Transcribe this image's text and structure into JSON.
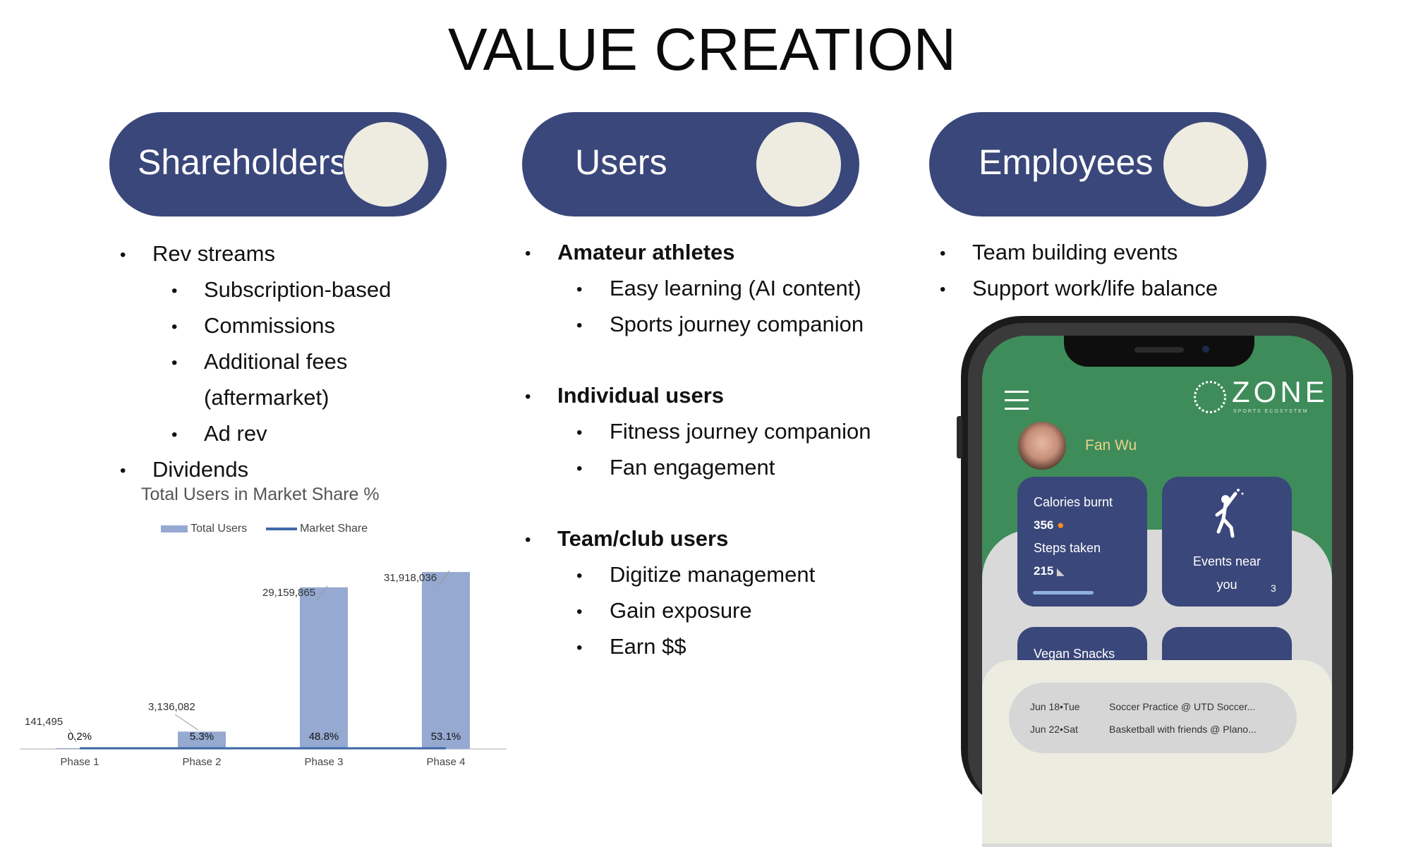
{
  "title": "VALUE CREATION",
  "columns": [
    {
      "heading": "Shareholders",
      "items": [
        {
          "level": 1,
          "text": "Rev streams"
        },
        {
          "level": 2,
          "text": "Subscription-based"
        },
        {
          "level": 2,
          "text": "Commissions"
        },
        {
          "level": 2,
          "text": "Additional fees"
        },
        {
          "level": 2,
          "text": "(aftermarket)",
          "nobullet": true
        },
        {
          "level": 2,
          "text": "Ad rev"
        },
        {
          "level": 1,
          "text": "Dividends"
        }
      ]
    },
    {
      "heading": "Users",
      "items": [
        {
          "level": 1,
          "text": "Amateur athletes",
          "bold": true
        },
        {
          "level": 2,
          "text": "Easy learning (AI content)"
        },
        {
          "level": 2,
          "text": "Sports journey companion"
        },
        {
          "level": 1,
          "text": "Individual users",
          "bold": true
        },
        {
          "level": 2,
          "text": "Fitness journey companion"
        },
        {
          "level": 2,
          "text": "Fan engagement"
        },
        {
          "level": 1,
          "text": "Team/club users",
          "bold": true
        },
        {
          "level": 2,
          "text": "Digitize management"
        },
        {
          "level": 2,
          "text": "Gain exposure"
        },
        {
          "level": 2,
          "text": "Earn $$"
        }
      ]
    },
    {
      "heading": "Employees",
      "items": [
        {
          "level": 1,
          "text": "Team building events"
        },
        {
          "level": 1,
          "text": "Support work/life balance"
        }
      ]
    }
  ],
  "chart_data": {
    "type": "bar",
    "title": "Total Users in Market Share %",
    "categories": [
      "Phase 1",
      "Phase 2",
      "Phase 3",
      "Phase 4"
    ],
    "series": [
      {
        "name": "Total Users",
        "values": [
          141495,
          3136082,
          29159865,
          31918036
        ],
        "labels": [
          "141,495",
          "3,136,082",
          "29,159,865",
          "31,918,036"
        ],
        "color": "#95a9d1"
      },
      {
        "name": "Market Share",
        "values": [
          0.2,
          5.3,
          48.8,
          53.1
        ],
        "labels": [
          "0.2%",
          "5.3%",
          "48.8%",
          "53.1%"
        ],
        "color": "#3f6aa8"
      }
    ],
    "ylim": [
      0,
      35000000
    ],
    "grid": false,
    "legend": "top"
  },
  "phone": {
    "brand": "ZONE",
    "brand_sub": "SPORTS ECOSYSTEM",
    "user_name": "Fan Wu",
    "card1": {
      "cal_label": "Calories burnt",
      "cal_value": "356",
      "steps_label": "Steps taken",
      "steps_value": "215"
    },
    "card2": {
      "label_line1": "Events near",
      "label_line2": "you",
      "count": "3"
    },
    "card3": {
      "label": "Vegan Snacks"
    },
    "events": [
      {
        "date": "Jun 18•Tue",
        "title": "Soccer Practice @ UTD Soccer..."
      },
      {
        "date": "Jun 22•Sat",
        "title": "Basketball with friends @ Plano..."
      }
    ],
    "colors": {
      "screen": "#3e8c5a",
      "card": "#3a477a",
      "name": "#e9d38a"
    }
  }
}
